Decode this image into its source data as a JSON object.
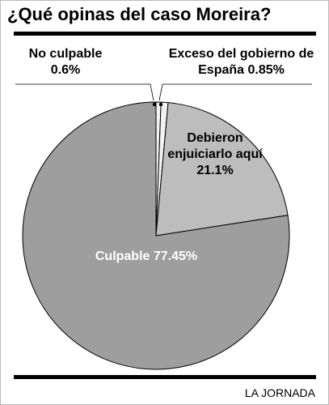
{
  "chart_data": {
    "type": "pie",
    "title": "¿Qué opinas del caso Moreira?",
    "source": "LA JORNADA",
    "categories": [
      "No culpable",
      "Exceso del gobierno de España",
      "Debieron enjuiciarlo aquí",
      "Culpable"
    ],
    "values": [
      0.6,
      0.85,
      21.1,
      77.45
    ],
    "value_labels": [
      "0.6%",
      "0.85%",
      "21.1%",
      "77.45%"
    ],
    "colors": [
      "#f2f2f2",
      "#f2f2f2",
      "#bdbdbd",
      "#9e9e9e"
    ]
  }
}
